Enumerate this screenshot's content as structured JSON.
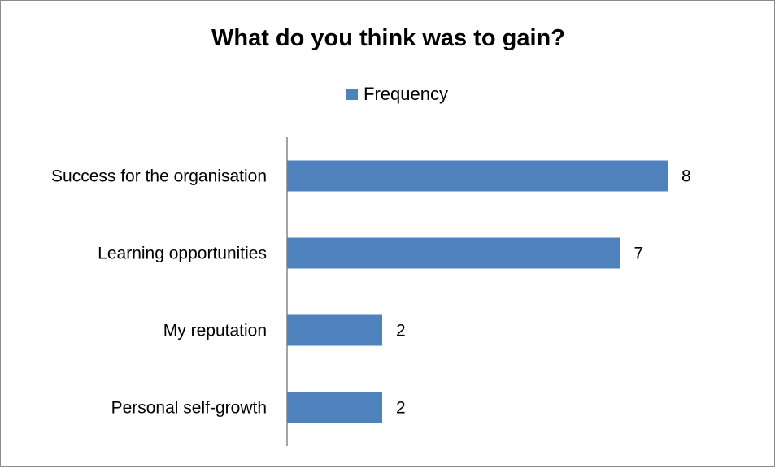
{
  "chart_data": {
    "type": "bar",
    "orientation": "horizontal",
    "title": "What do you think was to gain?",
    "categories": [
      "Success for the organisation",
      "Learning opportunities",
      "My reputation",
      "Personal self-growth"
    ],
    "series": [
      {
        "name": "Frequency",
        "values": [
          8,
          7,
          2,
          2
        ],
        "color": "#4f81bd"
      }
    ],
    "xlim": [
      0,
      8
    ],
    "grid": false,
    "legend_position": "top",
    "data_labels": true
  }
}
